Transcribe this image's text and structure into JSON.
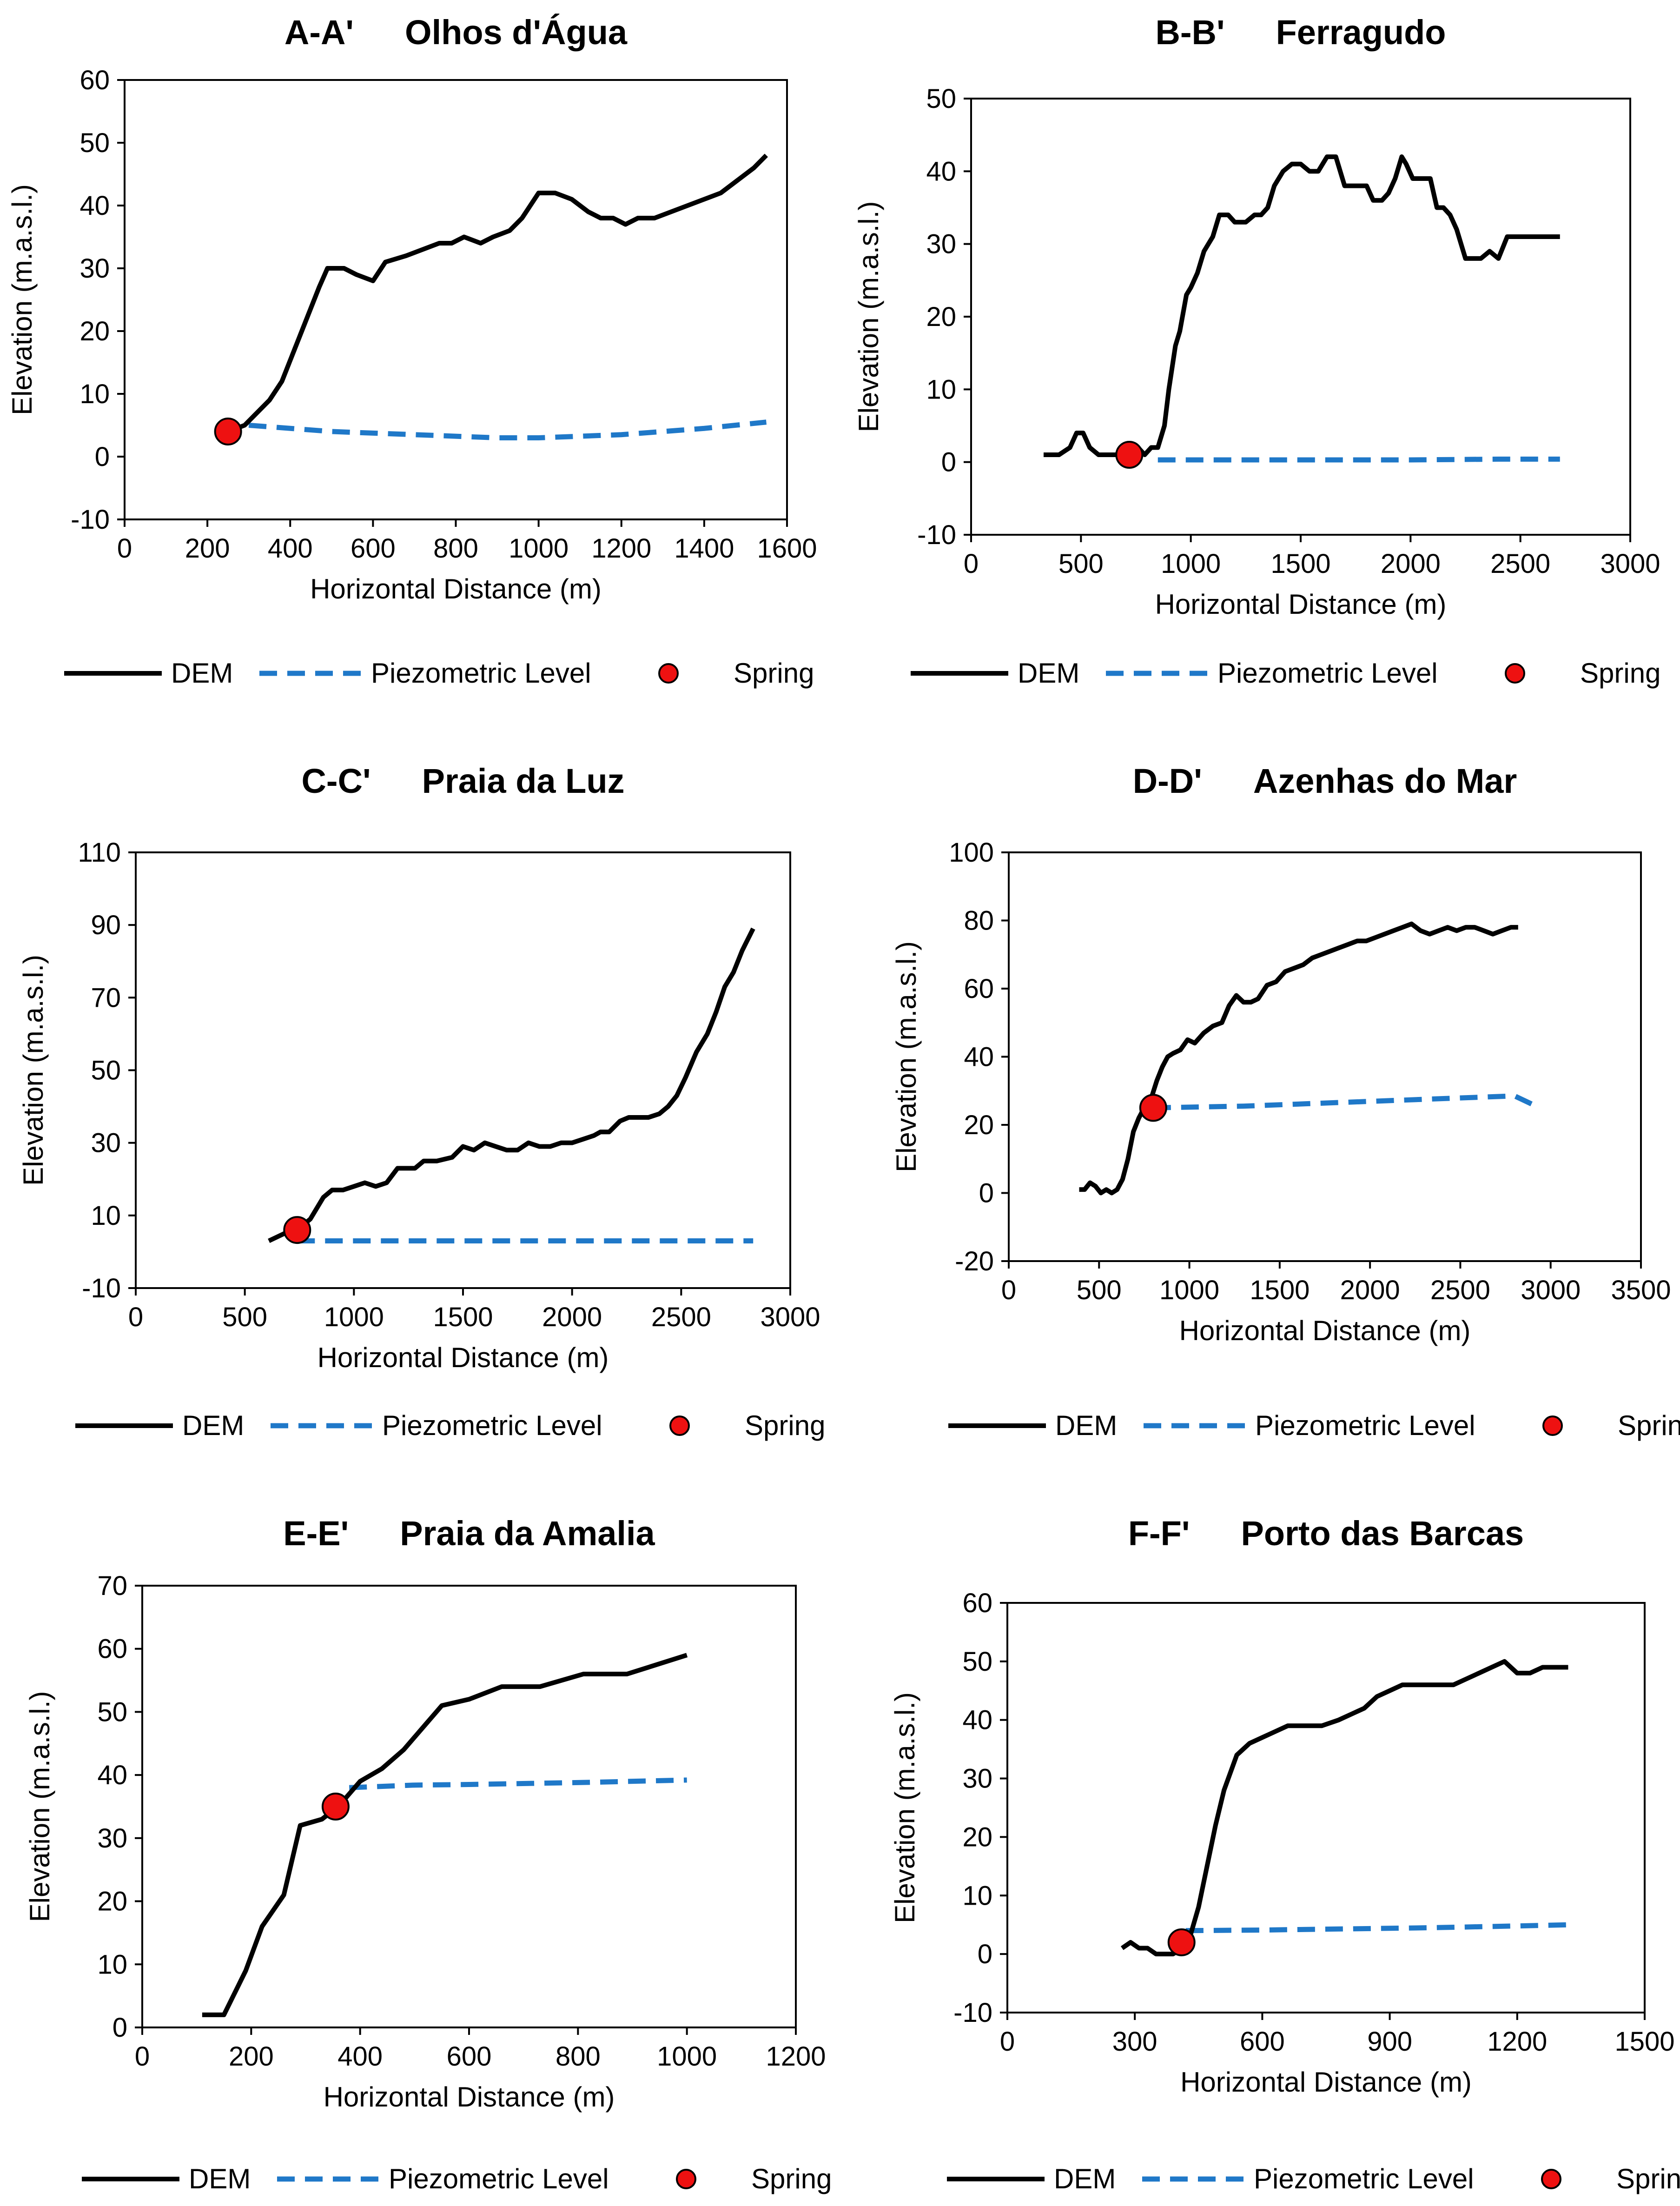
{
  "colors": {
    "dem": "#000000",
    "piezometric": "#1f78c8",
    "spring": "#ee1111",
    "spring_edge": "#000000"
  },
  "legend": {
    "dem": "DEM",
    "piezometric": "Piezometric Level",
    "spring": "Spring"
  },
  "chart_data": [
    {
      "type": "line",
      "id": "A",
      "section": "A-A'",
      "title": "Olhos d'Água",
      "xlabel": "Horizontal Distance (m)",
      "ylabel": "Elevation (m.a.s.l.)",
      "xlim": [
        0,
        1600
      ],
      "ylim": [
        -10,
        60
      ],
      "xticks": [
        0,
        200,
        400,
        600,
        800,
        1000,
        1200,
        1400,
        1600
      ],
      "yticks": [
        -10,
        0,
        10,
        20,
        30,
        40,
        50,
        60
      ],
      "dem": {
        "x": [
          250,
          290,
          320,
          350,
          380,
          410,
          440,
          470,
          490,
          530,
          560,
          600,
          630,
          680,
          720,
          760,
          790,
          820,
          860,
          890,
          930,
          960,
          1000,
          1040,
          1080,
          1120,
          1150,
          1180,
          1210,
          1240,
          1280,
          1320,
          1360,
          1400,
          1440,
          1480,
          1520,
          1550
        ],
        "y": [
          4,
          5,
          7,
          9,
          12,
          17,
          22,
          27,
          30,
          30,
          29,
          28,
          31,
          32,
          33,
          34,
          34,
          35,
          34,
          35,
          36,
          38,
          42,
          42,
          41,
          39,
          38,
          38,
          37,
          38,
          38,
          39,
          40,
          41,
          42,
          44,
          46,
          48
        ]
      },
      "piezometric": {
        "x": [
          300,
          500,
          700,
          900,
          1000,
          1200,
          1400,
          1550
        ],
        "y": [
          5,
          4,
          3.5,
          3,
          3,
          3.5,
          4.5,
          5.5
        ]
      },
      "spring": {
        "x": 250,
        "y": 4
      }
    },
    {
      "type": "line",
      "id": "B",
      "section": "B-B'",
      "title": "Ferragudo",
      "xlabel": "Horizontal Distance (m)",
      "ylabel": "Elevation (m.a.s.l.)",
      "xlim": [
        0,
        3000
      ],
      "ylim": [
        -10,
        50
      ],
      "xticks": [
        0,
        500,
        1000,
        1500,
        2000,
        2500,
        3000
      ],
      "yticks": [
        -10,
        0,
        10,
        20,
        30,
        40,
        50
      ],
      "dem": {
        "x": [
          330,
          400,
          450,
          480,
          510,
          540,
          580,
          620,
          660,
          700,
          730,
          760,
          790,
          820,
          850,
          880,
          900,
          930,
          950,
          980,
          1000,
          1030,
          1060,
          1100,
          1130,
          1170,
          1200,
          1250,
          1290,
          1320,
          1350,
          1380,
          1420,
          1460,
          1500,
          1540,
          1580,
          1620,
          1660,
          1700,
          1730,
          1760,
          1800,
          1830,
          1870,
          1900,
          1930,
          1960,
          1980,
          2010,
          2050,
          2090,
          2120,
          2150,
          2180,
          2210,
          2250,
          2280,
          2320,
          2360,
          2400,
          2440,
          2480,
          2520,
          2550,
          2580,
          2620,
          2660,
          2680
        ],
        "y": [
          1,
          1,
          2,
          4,
          4,
          2,
          1,
          1,
          1,
          2,
          1,
          2,
          1,
          2,
          2,
          5,
          10,
          16,
          18,
          23,
          24,
          26,
          29,
          31,
          34,
          34,
          33,
          33,
          34,
          34,
          35,
          38,
          40,
          41,
          41,
          40,
          40,
          42,
          42,
          38,
          38,
          38,
          38,
          36,
          36,
          37,
          39,
          42,
          41,
          39,
          39,
          39,
          35,
          35,
          34,
          32,
          28,
          28,
          28,
          29,
          28,
          31,
          31,
          31,
          31,
          31,
          31,
          31,
          31
        ],
        "note": ""
      },
      "piezometric": {
        "x": [
          850,
          1200,
          1600,
          2000,
          2400,
          2680
        ],
        "y": [
          0.3,
          0.3,
          0.3,
          0.3,
          0.4,
          0.4
        ]
      },
      "spring": {
        "x": 720,
        "y": 1
      }
    },
    {
      "type": "line",
      "id": "C",
      "section": "C-C'",
      "title": "Praia da Luz",
      "xlabel": "Horizontal Distance (m)",
      "ylabel": "Elevation (m.a.s.l.)",
      "xlim": [
        0,
        3000
      ],
      "ylim": [
        -10,
        110
      ],
      "xticks": [
        0,
        500,
        1000,
        1500,
        2000,
        2500,
        3000
      ],
      "yticks": [
        -10,
        10,
        30,
        50,
        70,
        90,
        110
      ],
      "dem": {
        "x": [
          610,
          680,
          740,
          800,
          860,
          900,
          950,
          1000,
          1050,
          1100,
          1150,
          1200,
          1280,
          1320,
          1380,
          1450,
          1500,
          1550,
          1600,
          1650,
          1700,
          1750,
          1800,
          1850,
          1900,
          1950,
          2000,
          2050,
          2100,
          2130,
          2170,
          2220,
          2260,
          2300,
          2350,
          2400,
          2440,
          2480,
          2520,
          2570,
          2620,
          2660,
          2700,
          2740,
          2780,
          2830
        ],
        "y": [
          3,
          5,
          6,
          9,
          15,
          17,
          17,
          18,
          19,
          18,
          19,
          23,
          23,
          25,
          25,
          26,
          29,
          28,
          30,
          29,
          28,
          28,
          30,
          29,
          29,
          30,
          30,
          31,
          32,
          33,
          33,
          36,
          37,
          37,
          37,
          38,
          40,
          43,
          48,
          55,
          60,
          66,
          73,
          77,
          83,
          89
        ],
        "note": ""
      },
      "piezometric": {
        "x": [
          740,
          1200,
          1800,
          2400,
          2830
        ],
        "y": [
          3,
          3,
          3,
          3,
          3
        ]
      },
      "spring": {
        "x": 740,
        "y": 6
      }
    },
    {
      "type": "line",
      "id": "D",
      "section": "D-D'",
      "title": "Azenhas do Mar",
      "xlabel": "Horizontal Distance (m)",
      "ylabel": "Elevation (m.a.s.l.)",
      "xlim": [
        0,
        3500
      ],
      "ylim": [
        -20,
        100
      ],
      "xticks": [
        0,
        500,
        1000,
        1500,
        2000,
        2500,
        3000,
        3500
      ],
      "yticks": [
        -20,
        0,
        20,
        40,
        60,
        80,
        100
      ],
      "dem": {
        "x": [
          390,
          420,
          450,
          480,
          510,
          540,
          570,
          600,
          630,
          660,
          690,
          720,
          750,
          790,
          820,
          850,
          880,
          910,
          950,
          990,
          1030,
          1080,
          1130,
          1180,
          1220,
          1260,
          1300,
          1340,
          1380,
          1430,
          1480,
          1530,
          1580,
          1630,
          1680,
          1730,
          1780,
          1830,
          1880,
          1930,
          1980,
          2030,
          2080,
          2130,
          2180,
          2230,
          2280,
          2330,
          2380,
          2430,
          2480,
          2530,
          2580,
          2630,
          2680,
          2730,
          2780,
          2820
        ],
        "y": [
          1,
          1,
          3,
          2,
          0,
          1,
          0,
          1,
          4,
          10,
          18,
          22,
          25,
          28,
          33,
          37,
          40,
          41,
          42,
          45,
          44,
          47,
          49,
          50,
          55,
          58,
          56,
          56,
          57,
          61,
          62,
          65,
          66,
          67,
          69,
          70,
          71,
          72,
          73,
          74,
          74,
          75,
          76,
          77,
          78,
          79,
          77,
          76,
          77,
          78,
          77,
          78,
          78,
          77,
          76,
          77,
          78,
          78
        ],
        "note": ""
      },
      "piezometric": {
        "x": [
          800,
          1300,
          1800,
          2300,
          2800,
          2900
        ],
        "y": [
          25,
          25.5,
          26.5,
          27.5,
          28.5,
          26
        ]
      },
      "spring": {
        "x": 800,
        "y": 25
      }
    },
    {
      "type": "line",
      "id": "E",
      "section": "E-E'",
      "title": "Praia da Amalia",
      "xlabel": "Horizontal Distance (m)",
      "ylabel": "Elevation (m.a.s.l.)",
      "xlim": [
        0,
        1200
      ],
      "ylim": [
        0,
        70
      ],
      "xticks": [
        0,
        200,
        400,
        600,
        800,
        1000,
        1200
      ],
      "yticks": [
        0,
        10,
        20,
        30,
        40,
        50,
        60,
        70
      ],
      "dem": {
        "x": [
          110,
          150,
          190,
          220,
          260,
          290,
          330,
          360,
          400,
          440,
          480,
          520,
          550,
          600,
          660,
          730,
          810,
          890,
          1000
        ],
        "y": [
          2,
          2,
          9,
          16,
          21,
          32,
          33,
          35,
          39,
          41,
          44,
          48,
          51,
          52,
          54,
          54,
          56,
          56,
          59
        ]
      },
      "piezometric": {
        "x": [
          380,
          500,
          600,
          800,
          1000
        ],
        "y": [
          38,
          38.4,
          38.5,
          38.8,
          39.2
        ]
      },
      "spring": {
        "x": 355,
        "y": 35
      }
    },
    {
      "type": "line",
      "id": "F",
      "section": "F-F'",
      "title": "Porto das Barcas",
      "xlabel": "Horizontal Distance (m)",
      "ylabel": "Elevation (m.a.s.l.)",
      "xlim": [
        0,
        1500
      ],
      "ylim": [
        -10,
        60
      ],
      "xticks": [
        0,
        300,
        600,
        900,
        1200,
        1500
      ],
      "yticks": [
        -10,
        0,
        10,
        20,
        30,
        40,
        50,
        60
      ],
      "dem": {
        "x": [
          270,
          290,
          310,
          330,
          350,
          370,
          390,
          410,
          430,
          450,
          470,
          490,
          510,
          540,
          570,
          600,
          630,
          660,
          700,
          740,
          780,
          810,
          840,
          870,
          900,
          930,
          960,
          990,
          1020,
          1050,
          1080,
          1110,
          1140,
          1170,
          1200,
          1230,
          1260,
          1290,
          1320
        ],
        "y": [
          1,
          2,
          1,
          1,
          0,
          0,
          0,
          1,
          3,
          8,
          15,
          22,
          28,
          34,
          36,
          37,
          38,
          39,
          39,
          39,
          40,
          41,
          42,
          44,
          45,
          46,
          46,
          46,
          46,
          46,
          47,
          48,
          49,
          50,
          48,
          48,
          49,
          49,
          49
        ],
        "note": ""
      },
      "piezometric": {
        "x": [
          420,
          600,
          800,
          1000,
          1200,
          1320
        ],
        "y": [
          4,
          4.1,
          4.3,
          4.5,
          4.8,
          5
        ]
      },
      "spring": {
        "x": 410,
        "y": 2
      }
    }
  ]
}
